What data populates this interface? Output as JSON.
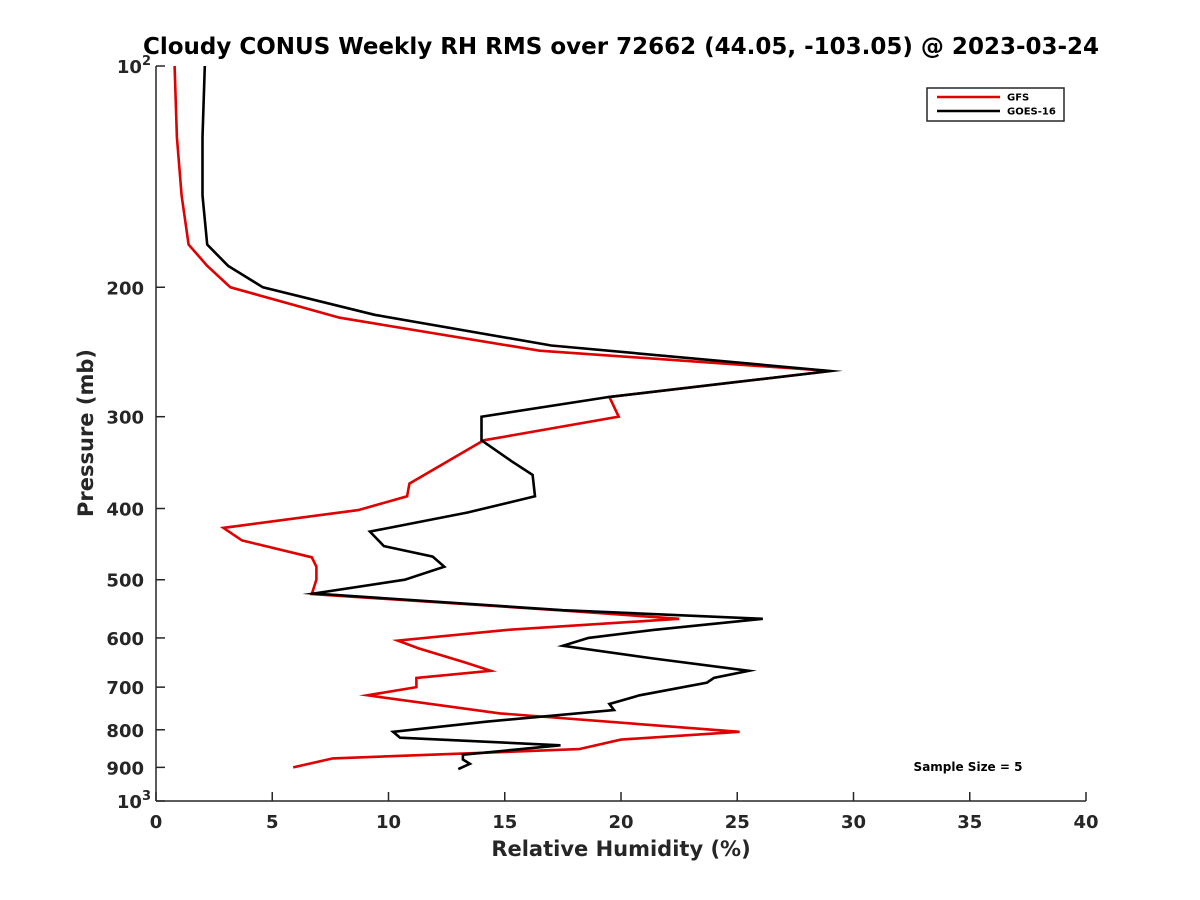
{
  "chart_data": {
    "type": "line",
    "title": "Cloudy CONUS Weekly RH RMS over 72662 (44.05, -103.05) @ 2023-03-24",
    "xlabel": "Relative Humidity (%)",
    "ylabel": "Pressure (mb)",
    "xlim": [
      0,
      40
    ],
    "ylim": [
      100,
      1000
    ],
    "y_scale": "log",
    "y_reversed": true,
    "x_ticks": [
      "0",
      "5",
      "10",
      "15",
      "20",
      "25",
      "30",
      "35",
      "40"
    ],
    "y_ticks": [
      {
        "value": 100,
        "base": "10",
        "exp": "2"
      },
      {
        "value": 200,
        "label": "200"
      },
      {
        "value": 300,
        "label": "300"
      },
      {
        "value": 400,
        "label": "400"
      },
      {
        "value": 500,
        "label": "500"
      },
      {
        "value": 600,
        "label": "600"
      },
      {
        "value": 700,
        "label": "700"
      },
      {
        "value": 800,
        "label": "800"
      },
      {
        "value": 900,
        "label": "900"
      },
      {
        "value": 1000,
        "base": "10",
        "exp": "3"
      }
    ],
    "grid": false,
    "legend_position": "top-right",
    "annotation": "Sample Size = 5",
    "series": [
      {
        "name": "GFS",
        "color": "#e00000",
        "points": [
          [
            0.8,
            100
          ],
          [
            0.9,
            125
          ],
          [
            1.1,
            150
          ],
          [
            1.4,
            175
          ],
          [
            2.2,
            187
          ],
          [
            3.2,
            200
          ],
          [
            7.9,
            220
          ],
          [
            16.5,
            244
          ],
          [
            29.0,
            260
          ],
          [
            19.5,
            282
          ],
          [
            19.9,
            300
          ],
          [
            14.1,
            323
          ],
          [
            10.9,
            370
          ],
          [
            10.8,
            385
          ],
          [
            8.7,
            402
          ],
          [
            2.9,
            425
          ],
          [
            3.7,
            442
          ],
          [
            6.7,
            466
          ],
          [
            6.9,
            480
          ],
          [
            6.9,
            500
          ],
          [
            6.7,
            523
          ],
          [
            17.3,
            550
          ],
          [
            22.5,
            565
          ],
          [
            15.1,
            585
          ],
          [
            10.4,
            605
          ],
          [
            11.3,
            620
          ],
          [
            13.3,
            648
          ],
          [
            14.4,
            665
          ],
          [
            11.2,
            680
          ],
          [
            11.2,
            700
          ],
          [
            9.1,
            718
          ],
          [
            14.8,
            760
          ],
          [
            25.1,
            805
          ],
          [
            20.0,
            825
          ],
          [
            18.2,
            850
          ],
          [
            13.9,
            860
          ],
          [
            7.6,
            875
          ],
          [
            5.9,
            900
          ]
        ]
      },
      {
        "name": "GOES-16",
        "color": "#000000",
        "points": [
          [
            2.1,
            100
          ],
          [
            2.0,
            125
          ],
          [
            2.0,
            150
          ],
          [
            2.2,
            175
          ],
          [
            3.1,
            187
          ],
          [
            4.6,
            200
          ],
          [
            9.4,
            218
          ],
          [
            17.0,
            240
          ],
          [
            29.0,
            260
          ],
          [
            19.5,
            282
          ],
          [
            14.0,
            300
          ],
          [
            14.0,
            323
          ],
          [
            15.3,
            345
          ],
          [
            16.2,
            360
          ],
          [
            16.3,
            385
          ],
          [
            13.4,
            405
          ],
          [
            9.2,
            430
          ],
          [
            9.8,
            450
          ],
          [
            11.9,
            465
          ],
          [
            12.4,
            480
          ],
          [
            10.7,
            500
          ],
          [
            6.8,
            522
          ],
          [
            17.5,
            550
          ],
          [
            26.1,
            565
          ],
          [
            21.4,
            585
          ],
          [
            18.6,
            600
          ],
          [
            17.5,
            615
          ],
          [
            21.4,
            640
          ],
          [
            25.5,
            665
          ],
          [
            24.0,
            680
          ],
          [
            23.7,
            690
          ],
          [
            20.8,
            718
          ],
          [
            19.5,
            738
          ],
          [
            19.7,
            752
          ],
          [
            14.2,
            780
          ],
          [
            10.2,
            805
          ],
          [
            10.5,
            820
          ],
          [
            17.4,
            840
          ],
          [
            13.2,
            865
          ],
          [
            13.2,
            878
          ],
          [
            13.5,
            890
          ],
          [
            13.0,
            905
          ]
        ]
      }
    ]
  }
}
